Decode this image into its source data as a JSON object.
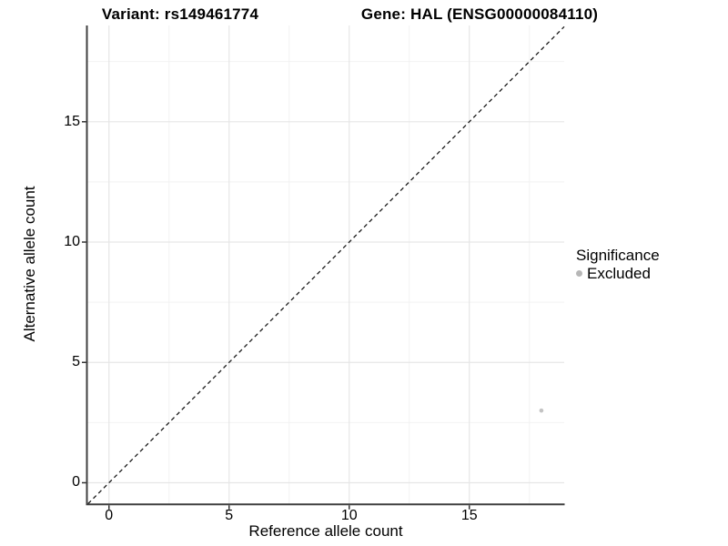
{
  "titles": {
    "variant": "Variant: rs149461774",
    "gene": "Gene: HAL (ENSG00000084110)"
  },
  "chart_data": {
    "type": "scatter",
    "title_left": "Variant: rs149461774",
    "title_right": "Gene: HAL (ENSG00000084110)",
    "xlabel": "Reference allele count",
    "ylabel": "Alternative allele count",
    "xlim": [
      -0.9,
      18.95
    ],
    "ylim": [
      -0.87,
      19.0
    ],
    "x_ticks": [
      0,
      5,
      10,
      15
    ],
    "y_ticks": [
      0,
      5,
      10,
      15
    ],
    "x_minor_ticks": [
      2.5,
      7.5,
      12.5,
      17.5
    ],
    "y_minor_ticks": [
      2.5,
      7.5,
      12.5,
      17.5
    ],
    "grid": "major and minor gridlines on white panel, left/bottom axis lines only",
    "reference_line": {
      "type": "identity y=x",
      "style": "dashed",
      "color": "#1a1a1a"
    },
    "series": [
      {
        "name": "Excluded",
        "color": "#c3c3c3",
        "points": [
          {
            "x": 18,
            "y": 3
          }
        ]
      }
    ],
    "legend": {
      "title": "Significance",
      "position": "right",
      "items": [
        {
          "label": "Excluded",
          "color": "#b7b7b7"
        }
      ]
    },
    "palette": {
      "axis_line": "#404040",
      "tick_mark": "#333333",
      "major_grid": "#e6e6e6",
      "minor_grid": "#f2f2f2",
      "background": "#ffffff"
    }
  }
}
